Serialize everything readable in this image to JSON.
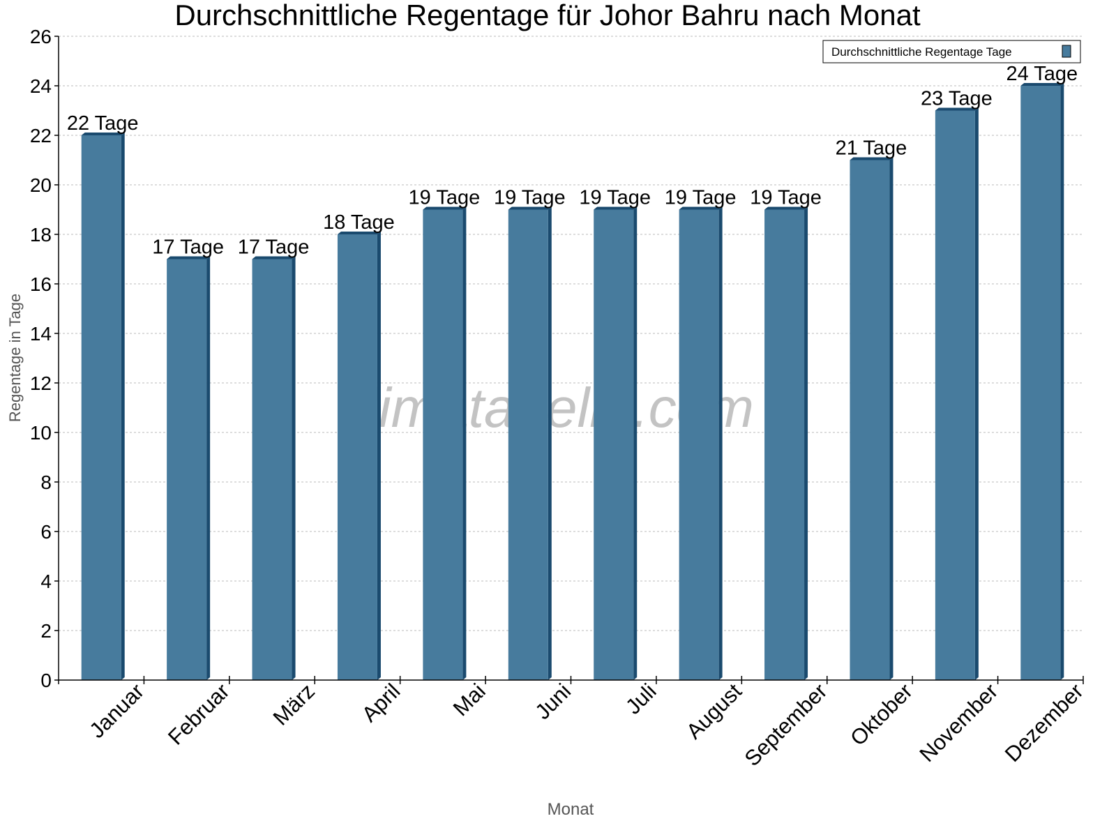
{
  "chart_data": {
    "type": "bar",
    "title": "Durchschnittliche Regentage für Johor Bahru nach Monat",
    "xlabel": "Monat",
    "ylabel": "Regentage in Tage",
    "categories": [
      "Januar",
      "Februar",
      "März",
      "April",
      "Mai",
      "Juni",
      "Juli",
      "August",
      "September",
      "Oktober",
      "November",
      "Dezember"
    ],
    "series": [
      {
        "name": "Durchschnittliche Regentage Tage",
        "values": [
          22,
          17,
          17,
          18,
          19,
          19,
          19,
          19,
          19,
          21,
          23,
          24
        ],
        "color": "#477b9d",
        "side_color": "#1a4a6e"
      }
    ],
    "data_labels": [
      "22 Tage",
      "17 Tage",
      "17 Tage",
      "18 Tage",
      "19 Tage",
      "19 Tage",
      "19 Tage",
      "19 Tage",
      "19 Tage",
      "21 Tage",
      "23 Tage",
      "24 Tage"
    ],
    "ylim": [
      0,
      26
    ],
    "yticks": [
      0,
      2,
      4,
      6,
      8,
      10,
      12,
      14,
      16,
      18,
      20,
      22,
      24,
      26
    ],
    "grid": true,
    "legend_position": "top-right",
    "watermark": "klimatabelle.com"
  }
}
